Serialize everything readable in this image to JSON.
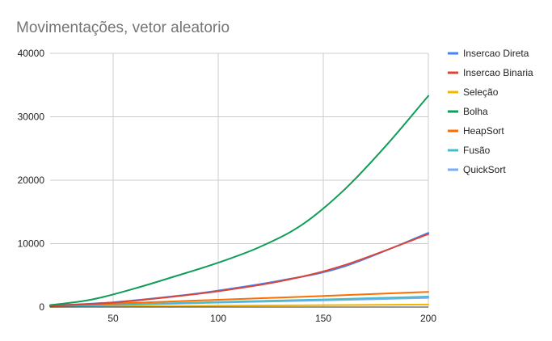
{
  "chart_data": {
    "type": "line",
    "title": "Movimentações, vetor aleatorio",
    "xlabel": "",
    "ylabel": "",
    "xlim": [
      20,
      200
    ],
    "ylim": [
      0,
      40000
    ],
    "xticks": [
      "50",
      "100",
      "150",
      "200"
    ],
    "xtick_values": [
      50,
      100,
      150,
      200
    ],
    "yticks": [
      "0",
      "10000",
      "20000",
      "30000",
      "40000"
    ],
    "ytick_values": [
      0,
      10000,
      20000,
      30000,
      40000
    ],
    "grid": true,
    "legend_position": "right",
    "series": [
      {
        "name": "Insercao Direta",
        "color": "#4285F4",
        "x": [
          20,
          50,
          80,
          100,
          130,
          160,
          200
        ],
        "y": [
          200,
          750,
          1750,
          2600,
          4200,
          6400,
          11700
        ]
      },
      {
        "name": "Insercao Binaria",
        "color": "#DB4437",
        "x": [
          20,
          50,
          80,
          100,
          130,
          160,
          200
        ],
        "y": [
          200,
          700,
          1700,
          2500,
          4100,
          6600,
          11500
        ]
      },
      {
        "name": "Seleção",
        "color": "#F4B400",
        "x": [
          20,
          50,
          100,
          150,
          200
        ],
        "y": [
          40,
          100,
          200,
          300,
          400
        ]
      },
      {
        "name": "Bolha",
        "color": "#0F9D58",
        "x": [
          20,
          40,
          60,
          80,
          100,
          120,
          140,
          160,
          180,
          200
        ],
        "y": [
          300,
          1200,
          2900,
          4900,
          7000,
          9500,
          13000,
          18500,
          25500,
          33300
        ]
      },
      {
        "name": "HeapSort",
        "color": "#FF6D00",
        "x": [
          20,
          50,
          100,
          150,
          200
        ],
        "y": [
          250,
          550,
          1150,
          1750,
          2400
        ]
      },
      {
        "name": "Fusão",
        "color": "#46BDC6",
        "x": [
          20,
          50,
          100,
          150,
          200
        ],
        "y": [
          120,
          350,
          800,
          1200,
          1650
        ]
      },
      {
        "name": "QuickSort",
        "color": "#7BAAF7",
        "x": [
          20,
          50,
          100,
          150,
          200
        ],
        "y": [
          100,
          300,
          700,
          1050,
          1450
        ]
      }
    ]
  }
}
